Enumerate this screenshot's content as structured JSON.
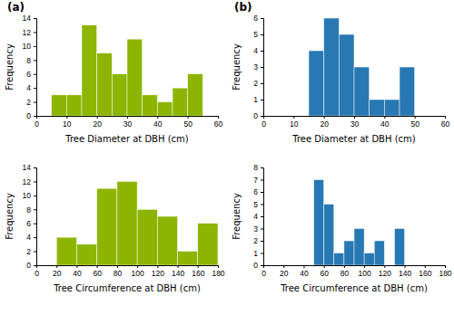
{
  "chart_data": [
    {
      "type": "histogram",
      "annotations": [
        "(a)"
      ],
      "bins": [
        5,
        10,
        15,
        20,
        25,
        30,
        35,
        40,
        45,
        50,
        55
      ],
      "values": [
        3,
        3,
        13,
        9,
        6,
        11,
        3,
        2,
        4,
        6
      ],
      "color": "#8db500",
      "x_label": "Tree Diameter  at DBH  (cm)",
      "y_label": "Frequency",
      "xlim": [
        0,
        60
      ],
      "ylim": [
        0,
        14
      ],
      "xticks": [
        0,
        10,
        20,
        30,
        40,
        50,
        60
      ],
      "yticks": [
        0,
        2,
        4,
        6,
        8,
        10,
        12,
        14
      ]
    },
    {
      "type": "histogram",
      "annotations": [
        "(b)"
      ],
      "bins": [
        15,
        20,
        25,
        30,
        35,
        40,
        45,
        50
      ],
      "values": [
        4,
        6,
        5,
        3,
        1,
        1,
        3
      ],
      "color": "#2878b4",
      "x_label": "Tree Diameter  at DBH  (cm)",
      "y_label": "Frequency",
      "xlim": [
        0,
        60
      ],
      "ylim": [
        0,
        6
      ],
      "xticks": [
        0,
        10,
        20,
        30,
        40,
        50,
        60
      ],
      "yticks": [
        0,
        1,
        2,
        3,
        4,
        5,
        6
      ]
    },
    {
      "type": "histogram",
      "bins": [
        20,
        40,
        60,
        80,
        100,
        120,
        140,
        160,
        180
      ],
      "values": [
        4,
        3,
        11,
        12,
        8,
        7,
        2,
        6
      ],
      "color": "#8db500",
      "x_label": "Tree Circumference  at DBH  (cm)",
      "y_label": "Frequency",
      "xlim": [
        0,
        180
      ],
      "ylim": [
        0,
        14
      ],
      "xticks": [
        0,
        20,
        40,
        60,
        80,
        100,
        120,
        140,
        160,
        180
      ],
      "yticks": [
        0,
        2,
        4,
        6,
        8,
        10,
        12,
        14
      ]
    },
    {
      "type": "histogram",
      "bins": [
        50,
        60,
        70,
        80,
        90,
        100,
        110,
        120,
        130,
        140
      ],
      "values": [
        7,
        5,
        1,
        2,
        3,
        1,
        2,
        0,
        3
      ],
      "color": "#2878b4",
      "x_label": "Tree Circumference  at DBH  (cm)",
      "y_label": "Frequency",
      "xlim": [
        0,
        180
      ],
      "ylim": [
        0,
        8
      ],
      "xticks": [
        0,
        20,
        40,
        60,
        80,
        100,
        120,
        140,
        160,
        180
      ],
      "yticks": [
        0,
        1,
        2,
        3,
        4,
        5,
        6,
        7,
        8
      ]
    }
  ]
}
